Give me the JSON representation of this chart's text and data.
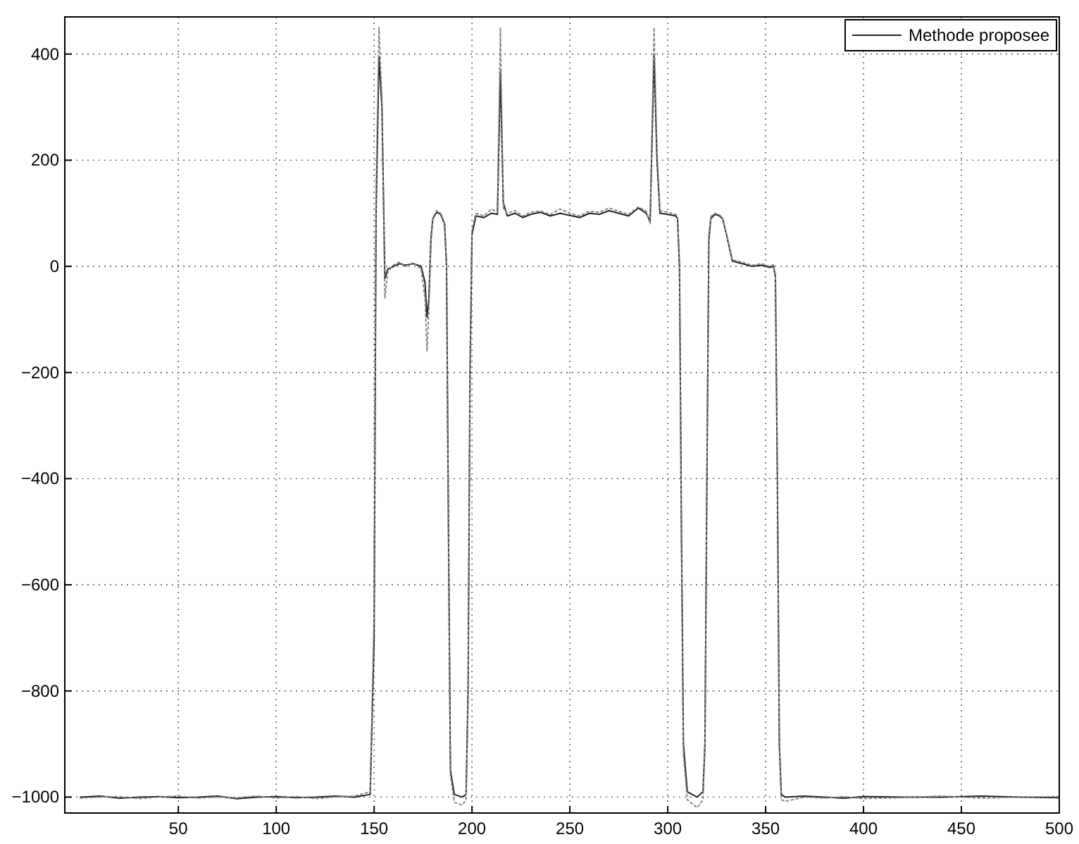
{
  "chart_data": {
    "type": "line",
    "xlim": [
      -8,
      500
    ],
    "ylim": [
      -1030,
      470
    ],
    "xticks": [
      50,
      100,
      150,
      200,
      250,
      300,
      350,
      400,
      450,
      500
    ],
    "yticks": [
      -1000,
      -800,
      -600,
      -400,
      -200,
      0,
      200,
      400
    ],
    "grid": true,
    "legend": "top right",
    "marker": "none",
    "x": [
      0,
      10,
      20,
      30,
      40,
      50,
      60,
      70,
      80,
      90,
      100,
      110,
      120,
      130,
      140,
      148,
      150,
      151,
      152.5,
      154,
      155.5,
      157,
      160,
      163,
      166,
      170,
      174,
      176,
      177,
      178,
      179,
      180,
      182,
      184,
      186,
      187,
      188,
      189,
      191,
      195,
      197,
      198,
      199,
      200,
      202,
      206,
      210,
      213,
      214.5,
      216,
      218,
      222,
      226,
      230,
      235,
      240,
      245,
      250,
      255,
      260,
      265,
      270,
      275,
      280,
      285,
      289,
      291,
      293,
      294.5,
      296,
      300,
      304,
      305,
      306,
      307,
      308,
      310,
      315,
      318,
      319,
      320,
      321,
      322,
      324,
      326,
      328,
      330,
      333,
      338,
      343,
      348,
      352,
      354,
      355,
      356,
      357,
      358,
      360,
      370,
      380,
      390,
      400,
      420,
      440,
      460,
      480,
      500
    ],
    "series": [
      {
        "name": "Methode proposee",
        "color": "#222222",
        "line_style": "solid",
        "values": [
          -1000,
          -998,
          -1002,
          -1000,
          -999,
          -1001,
          -1000,
          -998,
          -1003,
          -1000,
          -999,
          -1001,
          -1000,
          -998,
          -1000,
          -995,
          -700,
          100,
          394,
          300,
          -23,
          -5,
          0,
          5,
          2,
          5,
          0,
          -30,
          -96,
          -60,
          50,
          90,
          102,
          98,
          80,
          0,
          -500,
          -950,
          -995,
          -1000,
          -995,
          -800,
          -200,
          60,
          95,
          92,
          100,
          98,
          367,
          120,
          95,
          100,
          92,
          98,
          102,
          95,
          100,
          96,
          92,
          100,
          98,
          105,
          100,
          95,
          110,
          100,
          85,
          400,
          200,
          100,
          98,
          95,
          90,
          0,
          -500,
          -900,
          -990,
          -1000,
          -990,
          -900,
          -400,
          50,
          90,
          98,
          96,
          90,
          60,
          10,
          5,
          0,
          2,
          -2,
          0,
          -20,
          -400,
          -900,
          -995,
          -1000,
          -998,
          -1000,
          -1002,
          -999,
          -1000,
          -1000,
          -998,
          -1000,
          -1001
        ]
      },
      {
        "color": "#888888",
        "line_style": "dotted",
        "values": [
          -1002,
          -1000,
          -999,
          -1003,
          -1000,
          -998,
          -1002,
          -1000,
          -1001,
          -998,
          -1002,
          -999,
          -1003,
          -1000,
          -998,
          -990,
          -650,
          150,
          450,
          320,
          -60,
          -10,
          3,
          8,
          0,
          7,
          -5,
          -60,
          -160,
          -80,
          40,
          92,
          105,
          100,
          82,
          5,
          -520,
          -960,
          -1010,
          -1015,
          -1005,
          -820,
          -180,
          70,
          100,
          95,
          108,
          102,
          450,
          110,
          100,
          105,
          95,
          102,
          104,
          98,
          108,
          100,
          95,
          104,
          102,
          110,
          104,
          98,
          112,
          104,
          80,
          450,
          220,
          105,
          102,
          98,
          95,
          5,
          -520,
          -920,
          -1005,
          -1020,
          -1005,
          -910,
          -380,
          60,
          94,
          100,
          98,
          92,
          62,
          12,
          8,
          2,
          5,
          0,
          3,
          -15,
          -380,
          -910,
          -1005,
          -1008,
          -1000,
          -1002,
          -999,
          -1003,
          -1001,
          -998,
          -1002,
          -1000,
          -999
        ]
      }
    ]
  }
}
